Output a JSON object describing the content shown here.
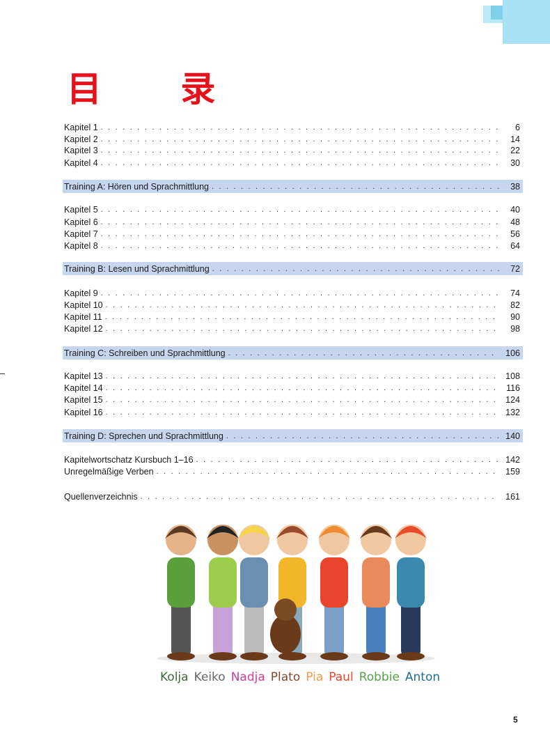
{
  "title": "目 录",
  "toc": [
    {
      "label": "Kapitel 1",
      "page": "6",
      "type": "chapter"
    },
    {
      "label": "Kapitel 2",
      "page": "14",
      "type": "chapter"
    },
    {
      "label": "Kapitel 3",
      "page": "22",
      "type": "chapter"
    },
    {
      "label": "Kapitel 4",
      "page": "30",
      "type": "chapter"
    },
    {
      "label": "Training A: Hören und Sprachmittlung",
      "page": "38",
      "type": "training"
    },
    {
      "label": "Kapitel 5",
      "page": "40",
      "type": "chapter"
    },
    {
      "label": "Kapitel 6",
      "page": "48",
      "type": "chapter"
    },
    {
      "label": "Kapitel 7",
      "page": "56",
      "type": "chapter"
    },
    {
      "label": "Kapitel 8",
      "page": "64",
      "type": "chapter"
    },
    {
      "label": "Training B: Lesen und Sprachmittlung",
      "page": "72",
      "type": "training"
    },
    {
      "label": "Kapitel 9",
      "page": "74",
      "type": "chapter"
    },
    {
      "label": "Kapitel 10",
      "page": "82",
      "type": "chapter"
    },
    {
      "label": "Kapitel 11",
      "page": "90",
      "type": "chapter"
    },
    {
      "label": "Kapitel 12",
      "page": "98",
      "type": "chapter"
    },
    {
      "label": "Training C: Schreiben und Sprachmittlung",
      "page": "106",
      "type": "training"
    },
    {
      "label": "Kapitel 13",
      "page": "108",
      "type": "chapter"
    },
    {
      "label": "Kapitel 14",
      "page": "116",
      "type": "chapter"
    },
    {
      "label": "Kapitel 15",
      "page": "124",
      "type": "chapter"
    },
    {
      "label": "Kapitel 16",
      "page": "132",
      "type": "chapter"
    },
    {
      "label": "Training D: Sprechen und Sprachmittlung",
      "page": "140",
      "type": "training"
    },
    {
      "label": "Kapitelwortschatz Kursbuch 1–16",
      "page": "142",
      "type": "appendix"
    },
    {
      "label": "Unregelmäßige Verben",
      "page": "159",
      "type": "appendix"
    },
    {
      "label": "Quellenverzeichnis",
      "page": "161",
      "type": "appendix"
    }
  ],
  "characters": [
    {
      "name": "Kolja",
      "color": "#3f6b3a"
    },
    {
      "name": "Keiko",
      "color": "#666666"
    },
    {
      "name": "Nadja",
      "color": "#cc3c9e"
    },
    {
      "name": "Plato",
      "color": "#7a4a32"
    },
    {
      "name": "Pia",
      "color": "#f39a4a"
    },
    {
      "name": "Paul",
      "color": "#e8452c"
    },
    {
      "name": "Robbie",
      "color": "#5aa04a"
    },
    {
      "name": "Anton",
      "color": "#1f6f8f"
    }
  ],
  "page_number": "5",
  "colors": {
    "title": "#e8101a",
    "training_bar": "#c7d6ef",
    "corner_deco": "#a9e2f4"
  }
}
